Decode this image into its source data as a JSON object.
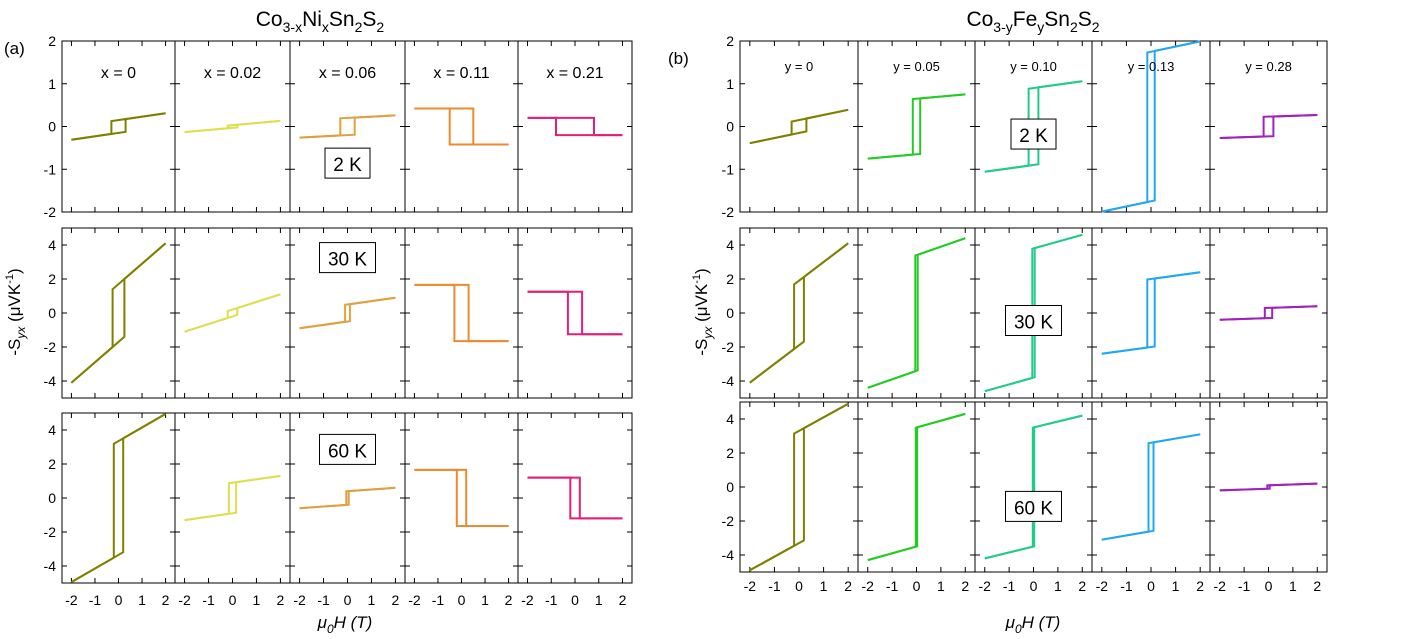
{
  "figure": {
    "left": {
      "panel_label": "(a)",
      "title_parts": [
        {
          "t": "Co",
          "sub": false
        },
        {
          "t": "3-x",
          "sub": true
        },
        {
          "t": "Ni",
          "sub": false
        },
        {
          "t": "x",
          "sub": true
        },
        {
          "t": "Sn",
          "sub": false
        },
        {
          "t": "2",
          "sub": true
        },
        {
          "t": "S",
          "sub": false
        },
        {
          "t": "2",
          "sub": true
        }
      ],
      "column_labels": [
        "x = 0",
        "x = 0.02",
        "x = 0.06",
        "x = 0.11",
        "x = 0.21"
      ],
      "row_temps": [
        "2 K",
        "30 K",
        "60 K"
      ],
      "ylabel_main": "-S",
      "ylabel_sub": "yx",
      "ylabel_unit": "(μVK",
      "ylabel_sup": "-1",
      "ylabel_close": ")",
      "xlabel_main": "μ",
      "xlabel_sub": "0",
      "xlabel_rest": "H (T)",
      "colors": [
        "#808000",
        "#dede50",
        "#e0a040",
        "#ee8a2e",
        "#e0207a"
      ]
    },
    "right": {
      "panel_label": "(b)",
      "title_parts": [
        {
          "t": "Co",
          "sub": false
        },
        {
          "t": "3-y",
          "sub": true
        },
        {
          "t": "Fe",
          "sub": false
        },
        {
          "t": "y",
          "sub": true
        },
        {
          "t": "Sn",
          "sub": false
        },
        {
          "t": "2",
          "sub": true
        },
        {
          "t": "S",
          "sub": false
        },
        {
          "t": "2",
          "sub": true
        }
      ],
      "column_labels": [
        "y = 0",
        "y = 0.05",
        "y = 0.10",
        "y = 0.13",
        "y = 0.28"
      ],
      "row_temps": [
        "2 K",
        "30 K",
        "60 K"
      ],
      "ylabel_main": "-S",
      "ylabel_sub": "yx",
      "ylabel_unit": "(μVK",
      "ylabel_sup": "-1",
      "ylabel_close": ")",
      "xlabel_main": "μ",
      "xlabel_sub": "0",
      "xlabel_rest": "H (T)",
      "colors": [
        "#808000",
        "#22cc22",
        "#22cc88",
        "#20a8f0",
        "#a020c0"
      ]
    }
  },
  "chart_data": [
    {
      "type": "line",
      "title": "Co3-xNixSn2S2",
      "panel_label": "(a)",
      "xlabel": "μ0H (T)",
      "ylabel": "-Syx (μVK-1)",
      "xlim": [
        -2.4,
        2.4
      ],
      "x_ticks": [
        -2,
        -1,
        0,
        1,
        2
      ],
      "columns": [
        "x = 0",
        "x = 0.02",
        "x = 0.06",
        "x = 0.11",
        "x = 0.21"
      ],
      "rows": [
        {
          "temperature": "2 K",
          "ylim": [
            -2,
            2
          ],
          "y_ticks": [
            -2,
            -1,
            0,
            1,
            2
          ],
          "series": [
            {
              "name": "x = 0",
              "a": 0.15,
              "b": 0.08,
              "hc": 0.3
            },
            {
              "name": "x = 0.02",
              "a": 0.03,
              "b": 0.05,
              "hc": 0.2
            },
            {
              "name": "x = 0.06",
              "a": 0.2,
              "b": 0.03,
              "hc": 0.3
            },
            {
              "name": "x = 0.11",
              "a": -0.42,
              "b": 0.0,
              "hc": 0.5
            },
            {
              "name": "x = 0.21",
              "a": -0.2,
              "b": 0.0,
              "hc": 0.8
            }
          ]
        },
        {
          "temperature": "30 K",
          "ylim": [
            -5,
            5
          ],
          "y_ticks": [
            -4,
            -2,
            0,
            2,
            4
          ],
          "series": [
            {
              "name": "x = 0",
              "a": 1.7,
              "b": 1.2,
              "hc": 0.25
            },
            {
              "name": "x = 0.02",
              "a": 0.2,
              "b": 0.45,
              "hc": 0.2
            },
            {
              "name": "x = 0.06",
              "a": 0.5,
              "b": 0.2,
              "hc": 0.1
            },
            {
              "name": "x = 0.11",
              "a": -1.65,
              "b": 0.0,
              "hc": 0.3
            },
            {
              "name": "x = 0.21",
              "a": -1.25,
              "b": 0.0,
              "hc": 0.3
            }
          ]
        },
        {
          "temperature": "60 K",
          "ylim": [
            -5,
            5
          ],
          "y_ticks": [
            -4,
            -2,
            0,
            2,
            4
          ],
          "series": [
            {
              "name": "x = 0",
              "a": 3.35,
              "b": 0.8,
              "hc": 0.2
            },
            {
              "name": "x = 0.02",
              "a": 0.9,
              "b": 0.2,
              "hc": 0.15
            },
            {
              "name": "x = 0.06",
              "a": 0.4,
              "b": 0.1,
              "hc": 0.05
            },
            {
              "name": "x = 0.11",
              "a": -1.65,
              "b": 0.0,
              "hc": 0.2
            },
            {
              "name": "x = 0.21",
              "a": -1.2,
              "b": 0.0,
              "hc": 0.2
            }
          ]
        }
      ]
    },
    {
      "type": "line",
      "title": "Co3-yFeySn2S2",
      "panel_label": "(b)",
      "xlabel": "μ0H (T)",
      "ylabel": "-Syx (μVK-1)",
      "xlim": [
        -2.4,
        2.4
      ],
      "x_ticks": [
        -2,
        -1,
        0,
        1,
        2
      ],
      "columns": [
        "y = 0",
        "y = 0.05",
        "y = 0.10",
        "y = 0.13",
        "y = 0.28"
      ],
      "rows": [
        {
          "temperature": "2 K",
          "ylim": [
            -2,
            2
          ],
          "y_ticks": [
            -2,
            -1,
            0,
            1,
            2
          ],
          "series": [
            {
              "name": "y = 0",
              "a": 0.15,
              "b": 0.12,
              "hc": 0.3
            },
            {
              "name": "y = 0.05",
              "a": 0.65,
              "b": 0.05,
              "hc": 0.15
            },
            {
              "name": "y = 0.10",
              "a": 0.9,
              "b": 0.08,
              "hc": 0.2
            },
            {
              "name": "y = 0.13",
              "a": 1.75,
              "b": 0.12,
              "hc": 0.15
            },
            {
              "name": "y = 0.28",
              "a": 0.23,
              "b": 0.02,
              "hc": 0.2
            }
          ]
        },
        {
          "temperature": "30 K",
          "ylim": [
            -5,
            5
          ],
          "y_ticks": [
            -4,
            -2,
            0,
            2,
            4
          ],
          "series": [
            {
              "name": "y = 0",
              "a": 1.9,
              "b": 1.1,
              "hc": 0.2
            },
            {
              "name": "y = 0.05",
              "a": 3.4,
              "b": 0.5,
              "hc": 0.05
            },
            {
              "name": "y = 0.10",
              "a": 3.8,
              "b": 0.4,
              "hc": 0.05
            },
            {
              "name": "y = 0.13",
              "a": 2.0,
              "b": 0.2,
              "hc": 0.15
            },
            {
              "name": "y = 0.28",
              "a": 0.3,
              "b": 0.05,
              "hc": 0.15
            }
          ]
        },
        {
          "temperature": "60 K",
          "ylim": [
            -5,
            5
          ],
          "y_ticks": [
            -4,
            -2,
            0,
            2,
            4
          ],
          "series": [
            {
              "name": "y = 0",
              "a": 3.3,
              "b": 0.8,
              "hc": 0.2
            },
            {
              "name": "y = 0.05",
              "a": 3.5,
              "b": 0.4,
              "hc": 0.03
            },
            {
              "name": "y = 0.10",
              "a": 3.5,
              "b": 0.35,
              "hc": 0.03
            },
            {
              "name": "y = 0.13",
              "a": 2.6,
              "b": 0.25,
              "hc": 0.1
            },
            {
              "name": "y = 0.28",
              "a": 0.1,
              "b": 0.05,
              "hc": 0.05
            }
          ]
        }
      ]
    }
  ]
}
